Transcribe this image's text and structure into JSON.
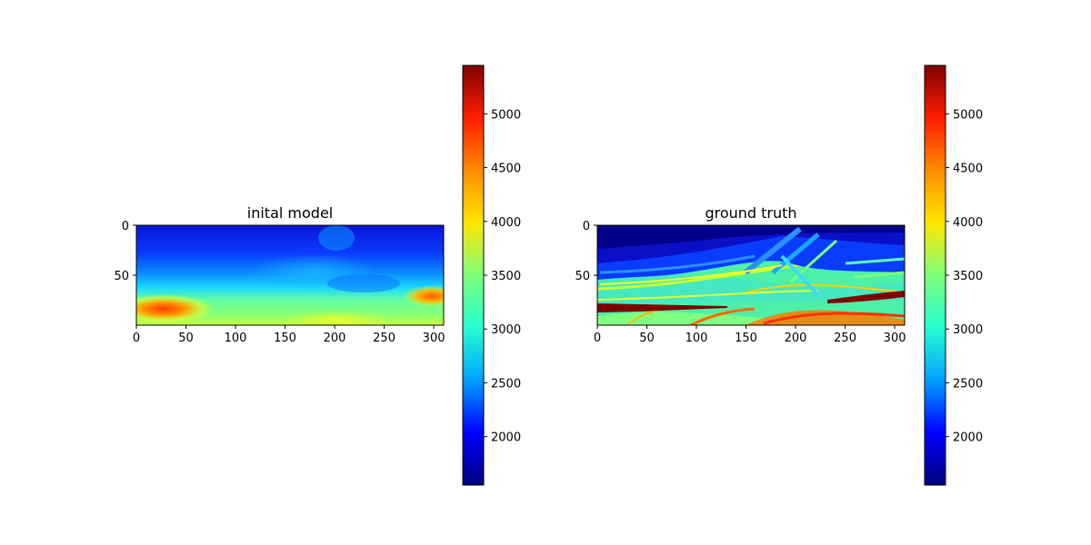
{
  "figure": {
    "background": "#ffffff",
    "colormap": "jet"
  },
  "chart_data": [
    {
      "type": "heatmap",
      "title": "inital model",
      "xlabel": "",
      "ylabel": "",
      "xlim": [
        0,
        310
      ],
      "ylim": [
        100,
        0
      ],
      "x_ticks": [
        0,
        50,
        100,
        150,
        200,
        250,
        300
      ],
      "y_ticks": [
        0,
        50
      ],
      "colorbar": {
        "range": [
          1550,
          5450
        ],
        "ticks": [
          2000,
          2500,
          3000,
          3500,
          4000,
          4500,
          5000
        ],
        "colors": [
          "#00007f",
          "#0000ff",
          "#00a0ff",
          "#26ffd0",
          "#7dff7a",
          "#ffe600",
          "#ff8c00",
          "#ff1e00",
          "#7f0000"
        ]
      },
      "description_values": {
        "shallow_velocity": 1750,
        "mid_velocity": 2900,
        "deep_velocity": 3700,
        "deep_left_anomaly": 4700,
        "deep_right_anomaly": 4500
      }
    },
    {
      "type": "heatmap",
      "title": "ground truth",
      "xlabel": "",
      "ylabel": "",
      "xlim": [
        0,
        310
      ],
      "ylim": [
        100,
        0
      ],
      "x_ticks": [
        0,
        50,
        100,
        150,
        200,
        250,
        300
      ],
      "y_ticks": [
        0,
        50
      ],
      "colorbar": {
        "range": [
          1550,
          5450
        ],
        "ticks": [
          2000,
          2500,
          3000,
          3500,
          4000,
          4500,
          5000
        ],
        "colors": [
          "#00007f",
          "#0000ff",
          "#00a0ff",
          "#26ffd0",
          "#7dff7a",
          "#ffe600",
          "#ff8c00",
          "#ff1e00",
          "#7f0000"
        ]
      },
      "description_values": {
        "shallow_velocity": 1650,
        "layered_velocity": 3000,
        "salt_velocity": 5400,
        "high_layers": 4500
      }
    }
  ]
}
